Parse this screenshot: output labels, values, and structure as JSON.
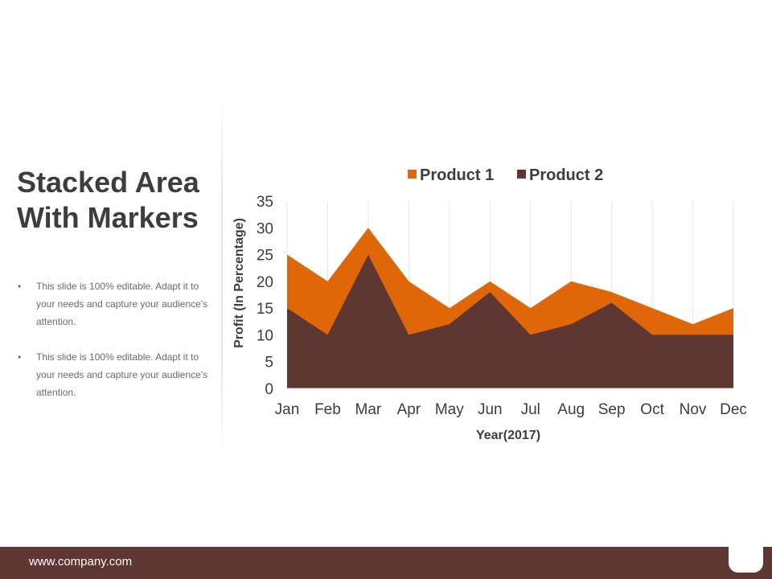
{
  "slide": {
    "title": "Stacked Area With Markers",
    "bullets": [
      "This slide is 100% editable. Adapt it to your needs and capture your audience's attention.",
      "This slide is 100% editable. Adapt it to your needs and capture your audience's attention."
    ],
    "bullet_symbol": "•",
    "footer": "www.company.com"
  },
  "colors": {
    "product1": "#e06708",
    "product2": "#5e3632",
    "text": "#3d3d3d",
    "footer": "#5e3632"
  },
  "chart_data": {
    "type": "area",
    "stacked": false,
    "categories": [
      "Jan",
      "Feb",
      "Mar",
      "Apr",
      "May",
      "Jun",
      "Jul",
      "Aug",
      "Sep",
      "Oct",
      "Nov",
      "Dec"
    ],
    "series": [
      {
        "name": "Product 1",
        "values": [
          25,
          20,
          30,
          20,
          15,
          20,
          15,
          20,
          18,
          15,
          12,
          15
        ]
      },
      {
        "name": "Product 2",
        "values": [
          15,
          10,
          25,
          10,
          12,
          18,
          10,
          12,
          16,
          10,
          10,
          10
        ]
      }
    ],
    "xlabel": "Year(2017)",
    "ylabel": "Profit (In Percentage)",
    "ylim": [
      0,
      35
    ],
    "yticks": [
      0,
      5,
      10,
      15,
      20,
      25,
      30,
      35
    ],
    "grid": "vertical",
    "legend": "top-center"
  }
}
